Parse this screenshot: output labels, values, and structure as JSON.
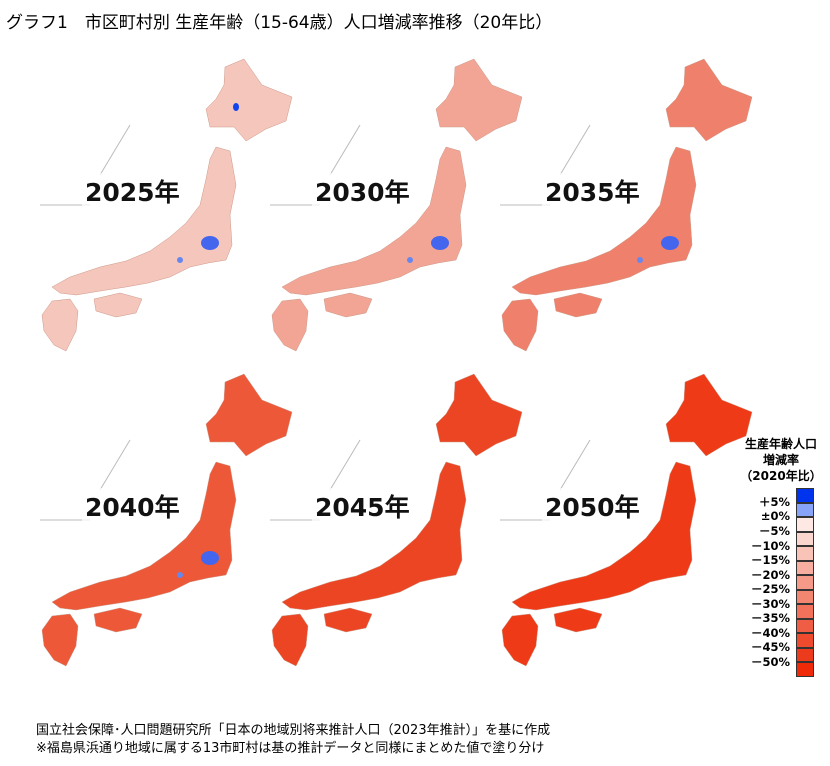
{
  "title": "グラフ1　市区町村別 生産年齢（15-64歳）人口増減率推移（20年比）",
  "maps": [
    {
      "year": "2025年",
      "fill": "#f5c6bc",
      "blue": true
    },
    {
      "year": "2030年",
      "fill": "#f2a595",
      "blue": true
    },
    {
      "year": "2035年",
      "fill": "#ef806b",
      "blue": true
    },
    {
      "year": "2040年",
      "fill": "#ec5838",
      "blue": true
    },
    {
      "year": "2045年",
      "fill": "#ec4523",
      "blue": false
    },
    {
      "year": "2050年",
      "fill": "#ee3a16",
      "blue": false
    }
  ],
  "legend": {
    "title_1": "生産年齢人口",
    "title_2": "増減率",
    "title_3": "（2020年比）",
    "labels": [
      "＋5%",
      "±0%",
      "－5%",
      "－10%",
      "－15%",
      "－20%",
      "－25%",
      "－30%",
      "－35%",
      "－40%",
      "－45%",
      "－50%"
    ],
    "colors": [
      "#0033ee",
      "#88a4f8",
      "#fde8e4",
      "#fbd6cf",
      "#f9c3b8",
      "#f7aea0",
      "#f59a88",
      "#f38670",
      "#f1715a",
      "#ef5d44",
      "#ed4a2e",
      "#ec3a1c",
      "#ee2a08"
    ]
  },
  "footnote": {
    "line1": "国立社会保障･人口問題研究所「日本の地域別将来推計人口（2023年推計）」を基に作成",
    "line2": "※福島県浜通り地域に属する13市町村は基の推計データと同様にまとめた値で塗り分け"
  }
}
